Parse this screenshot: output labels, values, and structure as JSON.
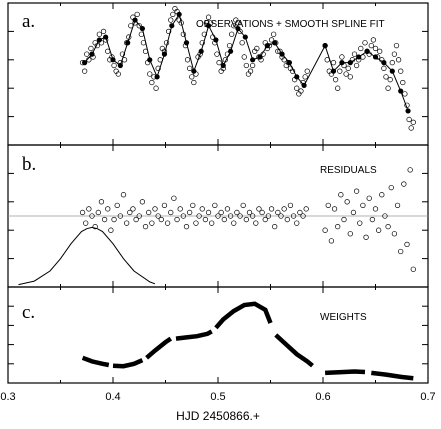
{
  "figure": {
    "xlabel": "HJD 2450866.+",
    "xlim": [
      0.3,
      0.7
    ],
    "xticks": [
      "0.3",
      "0.4",
      "0.5",
      "0.6",
      "0.7"
    ]
  },
  "chart_data": [
    {
      "type": "scatter",
      "panel_label": "a.",
      "title": "OBSERVATIONS + SMOOTH SPLINE FIT",
      "xlim": [
        0.3,
        0.7
      ],
      "ylim": [
        0,
        5
      ],
      "series": [
        {
          "role": "observations",
          "x": [
            0.371,
            0.373,
            0.375,
            0.377,
            0.379,
            0.381,
            0.383,
            0.385,
            0.387,
            0.389,
            0.391,
            0.393,
            0.395,
            0.397,
            0.399,
            0.401,
            0.403,
            0.405,
            0.407,
            0.409,
            0.411,
            0.413,
            0.415,
            0.417,
            0.419,
            0.421,
            0.423,
            0.425,
            0.427,
            0.429,
            0.431,
            0.433,
            0.435,
            0.437,
            0.439,
            0.441,
            0.443,
            0.445,
            0.447,
            0.449,
            0.451,
            0.453,
            0.455,
            0.457,
            0.459,
            0.461,
            0.463,
            0.465,
            0.467,
            0.469,
            0.471,
            0.473,
            0.475,
            0.477,
            0.479,
            0.481,
            0.483,
            0.485,
            0.487,
            0.489,
            0.491,
            0.493,
            0.495,
            0.497,
            0.499,
            0.501,
            0.503,
            0.505,
            0.507,
            0.509,
            0.511,
            0.513,
            0.515,
            0.517,
            0.519,
            0.521,
            0.523,
            0.525,
            0.527,
            0.529,
            0.531,
            0.533,
            0.535,
            0.537,
            0.539,
            0.541,
            0.543,
            0.545,
            0.547,
            0.549,
            0.551,
            0.553,
            0.555,
            0.557,
            0.559,
            0.561,
            0.563,
            0.565,
            0.567,
            0.569,
            0.571,
            0.573,
            0.575,
            0.577,
            0.579,
            0.581,
            0.583,
            0.585,
            0.602,
            0.604,
            0.606,
            0.608,
            0.61,
            0.612,
            0.614,
            0.616,
            0.618,
            0.62,
            0.622,
            0.624,
            0.626,
            0.628,
            0.63,
            0.632,
            0.634,
            0.636,
            0.638,
            0.64,
            0.642,
            0.644,
            0.646,
            0.648,
            0.65,
            0.652,
            0.654,
            0.656,
            0.658,
            0.66,
            0.662,
            0.664,
            0.666,
            0.668,
            0.67,
            0.672,
            0.674,
            0.676,
            0.678,
            0.68,
            0.682,
            0.684,
            0.686
          ],
          "y": [
            2.9,
            2.6,
            3.2,
            3.0,
            3.4,
            3.1,
            3.6,
            3.5,
            3.9,
            3.6,
            4.0,
            3.7,
            3.3,
            3.0,
            3.1,
            2.8,
            2.6,
            2.5,
            2.9,
            3.2,
            3.0,
            3.6,
            3.8,
            4.2,
            4.5,
            4.3,
            4.6,
            4.2,
            3.9,
            3.6,
            3.3,
            2.9,
            2.5,
            2.2,
            2.4,
            2.0,
            2.7,
            3.0,
            3.4,
            3.3,
            3.6,
            4.0,
            4.4,
            4.6,
            4.8,
            4.7,
            4.4,
            4.3,
            3.9,
            3.5,
            3.0,
            2.7,
            2.4,
            2.2,
            2.5,
            3.1,
            3.2,
            3.6,
            3.9,
            4.3,
            4.5,
            4.3,
            3.8,
            3.6,
            3.2,
            2.9,
            2.6,
            2.7,
            3.0,
            3.2,
            3.5,
            3.9,
            4.2,
            4.4,
            4.3,
            4.0,
            3.6,
            3.1,
            2.8,
            2.5,
            2.6,
            2.8,
            3.3,
            3.4,
            3.1,
            3.0,
            3.2,
            3.6,
            3.4,
            3.5,
            3.7,
            3.9,
            3.6,
            3.3,
            3.3,
            3.1,
            3.0,
            2.8,
            2.9,
            2.7,
            2.6,
            2.3,
            2.0,
            1.8,
            1.9,
            2.2,
            2.4,
            2.6,
            3.5,
            3.0,
            2.6,
            2.5,
            2.9,
            2.3,
            2.0,
            2.6,
            3.1,
            2.8,
            2.5,
            2.7,
            2.4,
            3.0,
            3.2,
            2.8,
            3.0,
            3.4,
            3.1,
            3.6,
            3.3,
            3.2,
            3.5,
            3.7,
            3.4,
            3.1,
            3.3,
            3.0,
            2.7,
            2.4,
            2.0,
            2.3,
            2.9,
            3.2,
            3.5,
            3.0,
            2.6,
            2.2,
            1.8,
            1.4,
            0.9,
            0.6,
            0.8
          ]
        },
        {
          "role": "spline-fit",
          "x": [
            0.373,
            0.38,
            0.387,
            0.393,
            0.4,
            0.407,
            0.414,
            0.421,
            0.428,
            0.435,
            0.442,
            0.449,
            0.456,
            0.463,
            0.47,
            0.477,
            0.484,
            0.491,
            0.498,
            0.505,
            0.512,
            0.519,
            0.526,
            0.533,
            0.54,
            0.547,
            0.554,
            0.561,
            0.568,
            0.575,
            0.582,
            0.602,
            0.61,
            0.618,
            0.626,
            0.634,
            0.642,
            0.65,
            0.658,
            0.666,
            0.674,
            0.681
          ],
          "y": [
            2.9,
            3.2,
            3.7,
            3.8,
            3.0,
            2.8,
            3.6,
            4.4,
            4.1,
            3.0,
            2.4,
            3.2,
            4.2,
            4.6,
            3.6,
            2.6,
            3.3,
            4.2,
            3.7,
            2.8,
            3.3,
            4.1,
            3.8,
            3.0,
            3.1,
            3.5,
            3.6,
            3.2,
            2.9,
            2.4,
            2.1,
            3.5,
            2.6,
            2.9,
            2.9,
            3.1,
            3.3,
            3.1,
            2.9,
            2.6,
            1.9,
            1.2
          ]
        }
      ]
    },
    {
      "type": "scatter",
      "panel_label": "b.",
      "title": "RESIDUALS",
      "xlim": [
        0.3,
        0.7
      ],
      "ylim": [
        -2,
        2
      ],
      "reference_line_y": 0,
      "series": [
        {
          "role": "residuals",
          "x": [
            0.371,
            0.374,
            0.377,
            0.38,
            0.383,
            0.386,
            0.389,
            0.392,
            0.395,
            0.398,
            0.401,
            0.404,
            0.407,
            0.41,
            0.413,
            0.416,
            0.419,
            0.422,
            0.425,
            0.428,
            0.431,
            0.434,
            0.437,
            0.44,
            0.443,
            0.446,
            0.449,
            0.452,
            0.455,
            0.458,
            0.461,
            0.464,
            0.467,
            0.47,
            0.473,
            0.476,
            0.479,
            0.482,
            0.485,
            0.488,
            0.491,
            0.494,
            0.497,
            0.5,
            0.503,
            0.506,
            0.509,
            0.512,
            0.515,
            0.518,
            0.521,
            0.524,
            0.527,
            0.53,
            0.533,
            0.536,
            0.539,
            0.542,
            0.545,
            0.548,
            0.551,
            0.554,
            0.557,
            0.56,
            0.563,
            0.566,
            0.569,
            0.572,
            0.575,
            0.578,
            0.581,
            0.584,
            0.602,
            0.605,
            0.608,
            0.611,
            0.614,
            0.617,
            0.62,
            0.623,
            0.626,
            0.629,
            0.632,
            0.635,
            0.638,
            0.641,
            0.644,
            0.647,
            0.65,
            0.653,
            0.656,
            0.659,
            0.662,
            0.665,
            0.668,
            0.671,
            0.674,
            0.677,
            0.68,
            0.683,
            0.686
          ],
          "y": [
            0.1,
            -0.2,
            0.2,
            0.0,
            -0.3,
            0.1,
            0.4,
            -0.1,
            0.2,
            -0.4,
            -0.1,
            0.3,
            0.0,
            0.6,
            -0.2,
            0.1,
            0.2,
            -0.1,
            0.0,
            0.4,
            -0.3,
            0.1,
            -0.2,
            0.2,
            0.0,
            -0.1,
            0.3,
            -0.2,
            0.1,
            0.5,
            -0.1,
            0.2,
            0.0,
            -0.3,
            0.1,
            0.3,
            -0.2,
            0.0,
            0.2,
            -0.1,
            0.1,
            -0.2,
            0.3,
            0.0,
            0.1,
            -0.1,
            0.2,
            0.0,
            -0.2,
            0.1,
            0.0,
            0.3,
            -0.1,
            0.1,
            0.0,
            -0.2,
            0.2,
            0.1,
            -0.1,
            0.0,
            0.2,
            -0.3,
            0.1,
            0.0,
            0.2,
            -0.1,
            0.3,
            0.0,
            -0.2,
            0.1,
            0.0,
            0.2,
            -0.4,
            0.3,
            -0.7,
            0.2,
            -0.3,
            0.6,
            -0.1,
            0.4,
            -0.5,
            0.1,
            0.7,
            -0.2,
            0.3,
            -0.6,
            0.5,
            -0.1,
            0.2,
            -0.4,
            0.6,
            0.0,
            -0.3,
            0.8,
            -0.5,
            0.3,
            -1.0,
            0.9,
            -0.8,
            1.3,
            -1.5
          ]
        }
      ]
    },
    {
      "type": "line",
      "panel_label": "c.",
      "title": "WEIGHTS",
      "xlim": [
        0.3,
        0.7
      ],
      "ylim": [
        0,
        4
      ],
      "series": [
        {
          "role": "weights",
          "segments": [
            {
              "x": [
                0.371,
                0.38,
                0.39,
                0.396
              ],
              "y": [
                1.05,
                0.9,
                0.8,
                0.75
              ]
            },
            {
              "x": [
                0.4,
                0.41,
                0.42,
                0.428
              ],
              "y": [
                0.72,
                0.7,
                0.8,
                0.95
              ]
            },
            {
              "x": [
                0.432,
                0.44,
                0.45,
                0.455
              ],
              "y": [
                1.05,
                1.35,
                1.7,
                1.85
              ]
            },
            {
              "x": [
                0.46,
                0.47,
                0.48,
                0.49,
                0.494
              ],
              "y": [
                1.85,
                1.9,
                1.95,
                2.05,
                2.15
              ]
            },
            {
              "x": [
                0.498,
                0.505,
                0.515,
                0.525,
                0.535,
                0.545,
                0.55
              ],
              "y": [
                2.3,
                2.65,
                3.0,
                3.25,
                3.3,
                3.05,
                2.5
              ]
            },
            {
              "x": [
                0.555,
                0.565,
                0.575,
                0.585,
                0.59
              ],
              "y": [
                2.0,
                1.6,
                1.2,
                0.9,
                0.72
              ]
            },
            {
              "x": [
                0.602,
                0.615,
                0.63,
                0.64
              ],
              "y": [
                0.42,
                0.45,
                0.48,
                0.46
              ]
            },
            {
              "x": [
                0.646,
                0.66,
                0.675,
                0.686
              ],
              "y": [
                0.42,
                0.35,
                0.25,
                0.2
              ]
            }
          ]
        },
        {
          "role": "gaussian-inset",
          "x": [
            0.31,
            0.325,
            0.34,
            0.35,
            0.36,
            0.37,
            0.375,
            0.38,
            0.385,
            0.39,
            0.4,
            0.41,
            0.42,
            0.435,
            0.44
          ],
          "y": [
            0.05,
            0.18,
            0.55,
            1.0,
            1.55,
            2.0,
            2.1,
            2.15,
            2.1,
            2.0,
            1.55,
            1.0,
            0.55,
            0.15,
            0.08
          ]
        }
      ]
    }
  ]
}
